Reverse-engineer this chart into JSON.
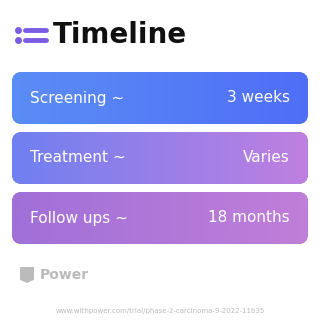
{
  "title": "Timeline",
  "bg_color": "#ffffff",
  "title_color": "#111111",
  "title_fontsize": 20,
  "title_fontweight": "bold",
  "icon_color": "#7b5ce5",
  "rows": [
    {
      "label": "Screening ~",
      "value": "3 weeks",
      "color_left": "#5b8df5",
      "color_right": "#4f6ef7"
    },
    {
      "label": "Treatment ~",
      "value": "Varies",
      "color_left": "#7080f0",
      "color_right": "#c07fe0"
    },
    {
      "label": "Follow ups ~",
      "value": "18 months",
      "color_left": "#a070d8",
      "color_right": "#c07fd8"
    }
  ],
  "text_fontsize": 11,
  "text_color": "#ffffff",
  "watermark_text": "Power",
  "watermark_color": "#bbbbbb",
  "url_text": "www.withpower.com/trial/phase-2-carcinoma-9-2022-11b35",
  "url_color": "#bbbbbb",
  "url_fontsize": 5.0
}
